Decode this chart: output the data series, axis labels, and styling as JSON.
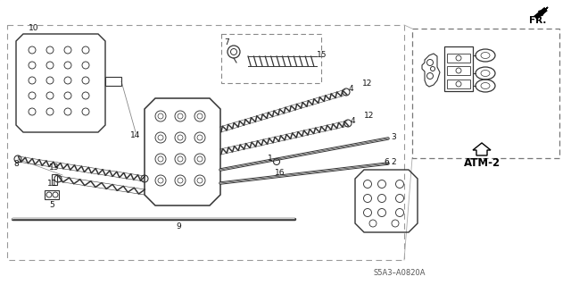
{
  "bg_color": "#f2f2ee",
  "line_color": "#888888",
  "part_color": "#555555",
  "dark_color": "#333333",
  "text_color": "#111111",
  "diagram_code": "S5A3–A0820A",
  "atm_label": "ATM-2",
  "fr_label": "FR.",
  "figw": 6.4,
  "figh": 3.19
}
